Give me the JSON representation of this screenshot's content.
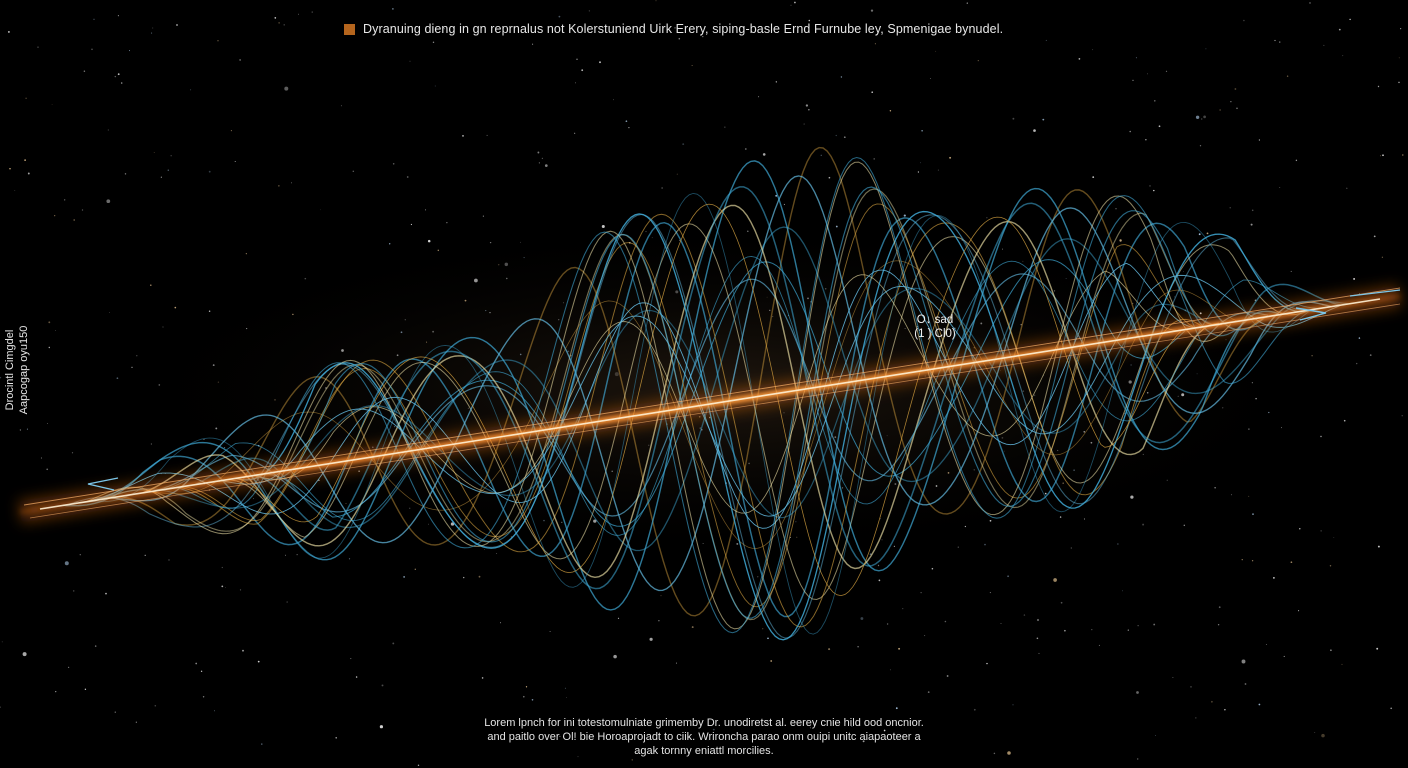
{
  "legend": {
    "text": "Dyranuing dieng in gn reprnalus not Kolerstuniend Uirk Erery, siping-basle Ernd Furnube ley, Spmenigae bynudel.",
    "swatch_color": "#b5651d"
  },
  "y_label": {
    "line1": "Drocintl Cimgdel",
    "line2": "Aapcogap oyu150"
  },
  "annotation": {
    "line1": "O↓ sad",
    "line2": "(1 ) Cl0)"
  },
  "caption": {
    "line1": "Lorem lpnch for ini totestomulniate grimemby Dr. unodiretst al. eerey cnie hild ood oncnior.",
    "line2": "and paitlo over Ol! bie Horoaprojadt to ciik. Wrironcha parao onm ouipi unitc aiapaoteer a",
    "line3": "agak tornny eniattl morcilies."
  },
  "colors": {
    "background": "#000000",
    "beam": "#ff8a2a",
    "beam_core": "#fff2d6",
    "wave_blue": "#3fa9d6",
    "wave_gold": "#d9a441",
    "wave_pale": "#efe3a8"
  }
}
